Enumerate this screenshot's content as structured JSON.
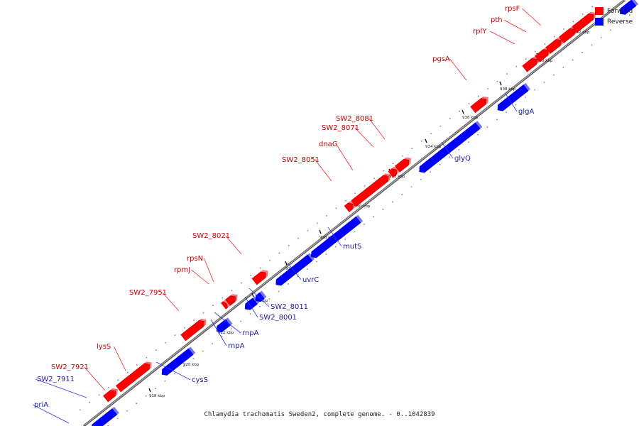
{
  "caption": "Chlamydia trachomatis Sweden2, complete genome. - 0..1042839",
  "legend": [
    {
      "label": "Forward",
      "color": "#ff0000"
    },
    {
      "label": "Reverse",
      "color": "#0000ff"
    }
  ],
  "colors": {
    "forward": "#ff0000",
    "reverse": "#0000ff",
    "forward_label": "#cc0000",
    "reverse_label": "#1a1aaa",
    "backbone": "#777777"
  },
  "ticks_kbp": [
    "918 kbp",
    "920 kbp",
    "922 kbp",
    "924 kbp",
    "926 kbp",
    "928 kbp",
    "930 kbp",
    "932 kbp",
    "934 kbp",
    "936 kbp",
    "938 kbp",
    "940 kbp",
    "942 kbp"
  ],
  "genes": [
    {
      "name": "priA",
      "strand": "reverse"
    },
    {
      "name": "SW2_7911",
      "strand": "reverse"
    },
    {
      "name": "SW2_7921",
      "strand": "forward"
    },
    {
      "name": "lysS",
      "strand": "forward"
    },
    {
      "name": "cysS",
      "strand": "reverse"
    },
    {
      "name": "SW2_7951",
      "strand": "forward"
    },
    {
      "name": "rnpA",
      "strand": "reverse"
    },
    {
      "name": "rnpA",
      "strand": "reverse"
    },
    {
      "name": "rpmJ",
      "strand": "forward"
    },
    {
      "name": "rpsN",
      "strand": "forward"
    },
    {
      "name": "SW2_8001",
      "strand": "reverse"
    },
    {
      "name": "SW2_8011",
      "strand": "reverse"
    },
    {
      "name": "SW2_8021",
      "strand": "forward"
    },
    {
      "name": "uvrC",
      "strand": "reverse"
    },
    {
      "name": "mutS",
      "strand": "reverse"
    },
    {
      "name": "SW2_8051",
      "strand": "forward"
    },
    {
      "name": "dnaG",
      "strand": "forward"
    },
    {
      "name": "SW2_8071",
      "strand": "forward"
    },
    {
      "name": "SW2_8081",
      "strand": "forward"
    },
    {
      "name": "glyQ",
      "strand": "reverse"
    },
    {
      "name": "pgsA",
      "strand": "forward"
    },
    {
      "name": "glgA",
      "strand": "reverse"
    },
    {
      "name": "rplY",
      "strand": "forward"
    },
    {
      "name": "pth",
      "strand": "forward"
    },
    {
      "name": "rpsF",
      "strand": "forward"
    }
  ]
}
